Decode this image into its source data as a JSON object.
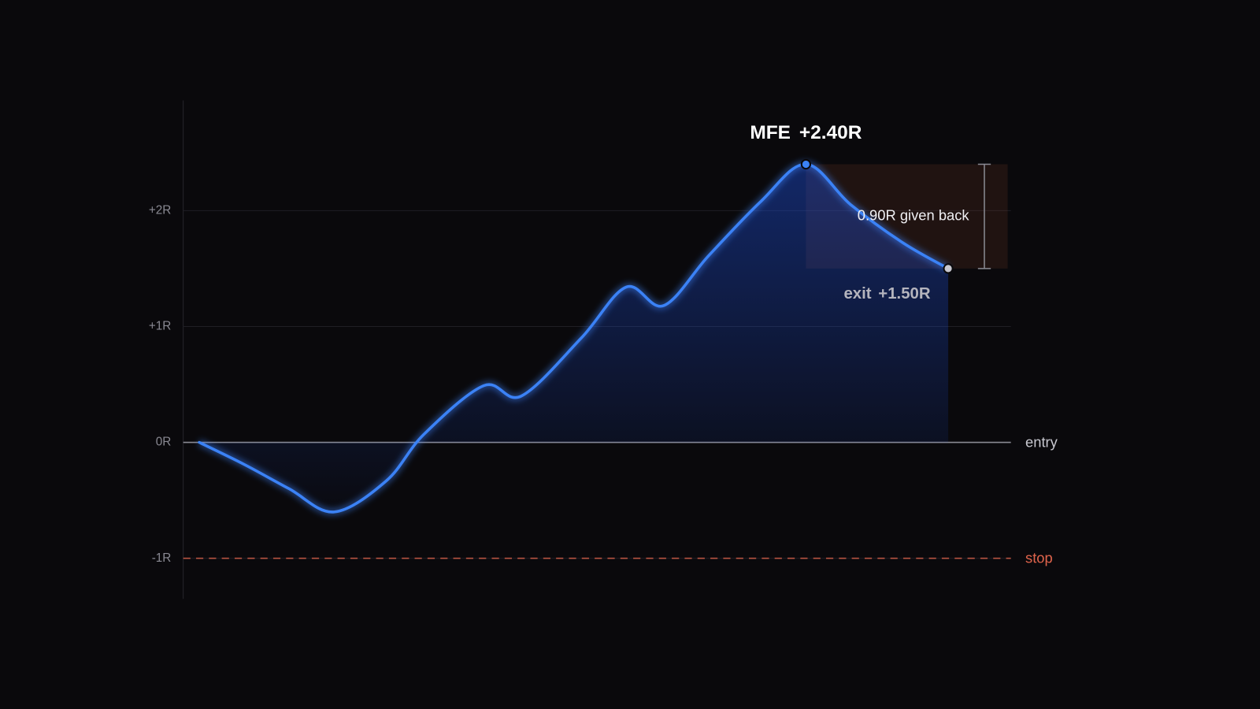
{
  "chart_data": {
    "type": "line",
    "x": [
      0,
      6,
      12,
      18,
      25,
      30,
      38,
      43,
      51,
      57,
      62,
      68,
      75,
      81,
      87,
      94,
      100
    ],
    "values": [
      0,
      -0.19,
      -0.4,
      -0.6,
      -0.33,
      0.07,
      0.49,
      0.4,
      0.9,
      1.34,
      1.18,
      1.61,
      2.08,
      2.4,
      2.05,
      1.72,
      1.5
    ],
    "color": "#3b82f6",
    "xlim": [
      0,
      100
    ],
    "ylim": [
      -1.35,
      2.95
    ],
    "yticks": [
      {
        "value": -1,
        "label": "-1R"
      },
      {
        "value": 0,
        "label": "0R"
      },
      {
        "value": 1,
        "label": "+1R"
      },
      {
        "value": 2,
        "label": "+2R"
      }
    ],
    "grid": true,
    "reference_lines": [
      {
        "value": 0,
        "label": "entry",
        "color": "#8a8a93",
        "dashed": false
      },
      {
        "value": -1,
        "label": "stop",
        "color": "#e0644c",
        "dashed": true
      }
    ],
    "mfe_label": "MFE +2.40R",
    "exit_label": "exit +1.50R",
    "giveback_label": "0.90R given back"
  }
}
